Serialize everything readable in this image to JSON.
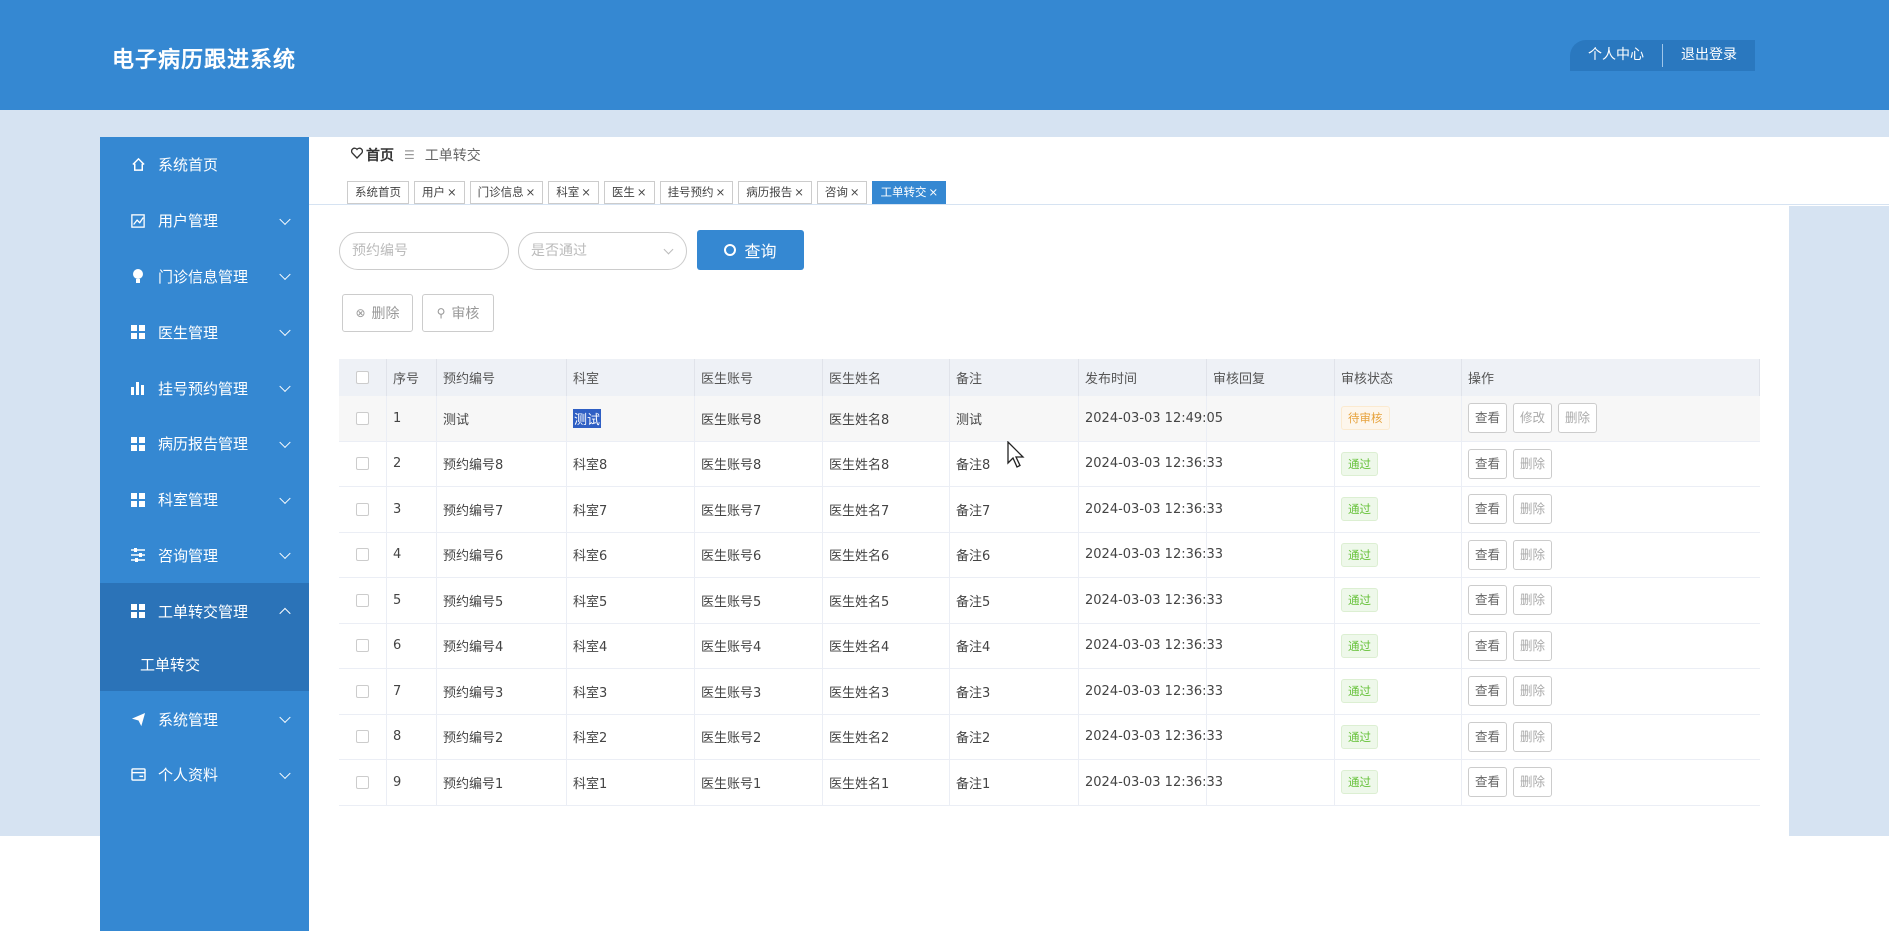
{
  "app": {
    "title": "电子病历跟进系统"
  },
  "top_actions": {
    "profile": "个人中心",
    "logout": "退出登录"
  },
  "sidebar": {
    "items": [
      {
        "label": "系统首页",
        "icon": "home-icon"
      },
      {
        "label": "用户管理",
        "icon": "chart-icon"
      },
      {
        "label": "门诊信息管理",
        "icon": "bulb-icon"
      },
      {
        "label": "医生管理",
        "icon": "grid-icon"
      },
      {
        "label": "挂号预约管理",
        "icon": "bar-chart-icon"
      },
      {
        "label": "病历报告管理",
        "icon": "grid-icon"
      },
      {
        "label": "科室管理",
        "icon": "grid-icon"
      },
      {
        "label": "咨询管理",
        "icon": "sliders-icon"
      },
      {
        "label": "工单转交管理",
        "icon": "grid-icon"
      },
      {
        "label": "系统管理",
        "icon": "send-icon"
      },
      {
        "label": "个人资料",
        "icon": "card-icon"
      }
    ],
    "sub_item": "工单转交"
  },
  "breadcrumb": {
    "home": "首页",
    "current": "工单转交"
  },
  "tabs": [
    "系统首页",
    "用户",
    "门诊信息",
    "科室",
    "医生",
    "挂号预约",
    "病历报告",
    "咨询",
    "工单转交"
  ],
  "tab_close": "×",
  "search": {
    "booking_placeholder": "预约编号",
    "passed_placeholder": "是否通过",
    "query_label": "查询"
  },
  "actions": {
    "delete": "删除",
    "review": "审核"
  },
  "table": {
    "headers": [
      "序号",
      "预约编号",
      "科室",
      "医生账号",
      "医生姓名",
      "备注",
      "发布时间",
      "审核回复",
      "审核状态",
      "操作"
    ],
    "rows": [
      {
        "idx": "1",
        "id": "测试",
        "dept": "测试",
        "acct": "医生账号8",
        "name": "医生姓名8",
        "note": "测试",
        "time": "2024-03-03 12:49:05",
        "reply": "",
        "status": "待审核",
        "ops": [
          "查看",
          "修改",
          "删除"
        ]
      },
      {
        "idx": "2",
        "id": "预约编号8",
        "dept": "科室8",
        "acct": "医生账号8",
        "name": "医生姓名8",
        "note": "备注8",
        "time": "2024-03-03 12:36:33",
        "reply": "",
        "status": "通过",
        "ops": [
          "查看",
          "删除"
        ]
      },
      {
        "idx": "3",
        "id": "预约编号7",
        "dept": "科室7",
        "acct": "医生账号7",
        "name": "医生姓名7",
        "note": "备注7",
        "time": "2024-03-03 12:36:33",
        "reply": "",
        "status": "通过",
        "ops": [
          "查看",
          "删除"
        ]
      },
      {
        "idx": "4",
        "id": "预约编号6",
        "dept": "科室6",
        "acct": "医生账号6",
        "name": "医生姓名6",
        "note": "备注6",
        "time": "2024-03-03 12:36:33",
        "reply": "",
        "status": "通过",
        "ops": [
          "查看",
          "删除"
        ]
      },
      {
        "idx": "5",
        "id": "预约编号5",
        "dept": "科室5",
        "acct": "医生账号5",
        "name": "医生姓名5",
        "note": "备注5",
        "time": "2024-03-03 12:36:33",
        "reply": "",
        "status": "通过",
        "ops": [
          "查看",
          "删除"
        ]
      },
      {
        "idx": "6",
        "id": "预约编号4",
        "dept": "科室4",
        "acct": "医生账号4",
        "name": "医生姓名4",
        "note": "备注4",
        "time": "2024-03-03 12:36:33",
        "reply": "",
        "status": "通过",
        "ops": [
          "查看",
          "删除"
        ]
      },
      {
        "idx": "7",
        "id": "预约编号3",
        "dept": "科室3",
        "acct": "医生账号3",
        "name": "医生姓名3",
        "note": "备注3",
        "time": "2024-03-03 12:36:33",
        "reply": "",
        "status": "通过",
        "ops": [
          "查看",
          "删除"
        ]
      },
      {
        "idx": "8",
        "id": "预约编号2",
        "dept": "科室2",
        "acct": "医生账号2",
        "name": "医生姓名2",
        "note": "备注2",
        "time": "2024-03-03 12:36:33",
        "reply": "",
        "status": "通过",
        "ops": [
          "查看",
          "删除"
        ]
      },
      {
        "idx": "9",
        "id": "预约编号1",
        "dept": "科室1",
        "acct": "医生账号1",
        "name": "医生姓名1",
        "note": "备注1",
        "time": "2024-03-03 12:36:33",
        "reply": "",
        "status": "通过",
        "ops": [
          "查看",
          "删除"
        ]
      }
    ]
  },
  "colors": {
    "primary": "#3588d2",
    "active_nav": "#2b73b8",
    "background": "#d6e3f2",
    "pass": "#67c23a",
    "pending": "#e6a23c"
  }
}
